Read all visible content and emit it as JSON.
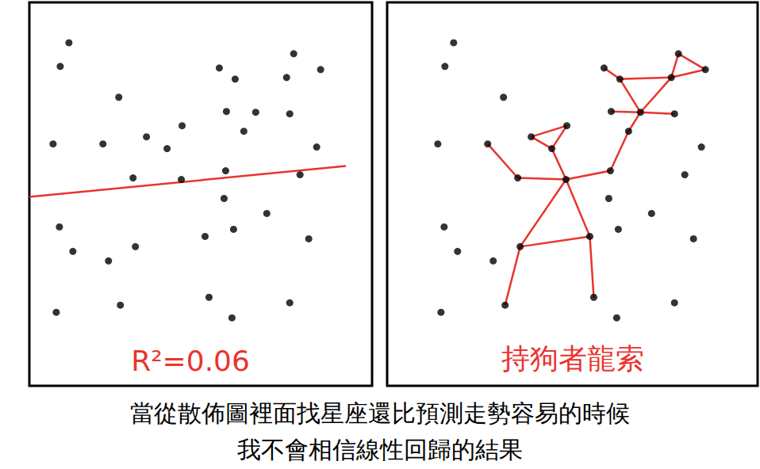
{
  "chart_data": [
    {
      "type": "scatter",
      "x": [
        50,
        39,
        113,
        240,
        260,
        334,
        325,
        368,
        30,
        93,
        148,
        174,
        193,
        249,
        271,
        286,
        329,
        363,
        131,
        192,
        248,
        342,
        246,
        300,
        38,
        55,
        100,
        134,
        222,
        258,
        353,
        34,
        115,
        227,
        256,
        329
      ],
      "y": [
        434,
        404,
        365,
        402,
        388,
        420,
        390,
        400,
        306,
        306,
        315,
        300,
        329,
        347,
        322,
        346,
        344,
        302,
        263,
        261,
        272,
        267,
        237,
        218,
        201,
        170,
        158,
        176,
        189,
        198,
        186,
        93,
        102,
        112,
        86,
        105
      ],
      "color": "#000000",
      "fit": {
        "x": [
          0,
          400
        ],
        "y": [
          239,
          278
        ],
        "color": "#e8342f"
      },
      "annotation": "R²=0.06",
      "annotation_color": "#e8342f",
      "xlim": [
        0,
        433
      ],
      "ylim": [
        0,
        485
      ],
      "tick_labels": false,
      "grid": false
    },
    {
      "type": "scatter",
      "x": [
        50,
        39,
        113,
        240,
        260,
        334,
        325,
        368,
        30,
        93,
        148,
        174,
        193,
        249,
        271,
        286,
        329,
        363,
        131,
        192,
        248,
        342,
        246,
        300,
        38,
        55,
        100,
        134,
        222,
        258,
        353,
        34,
        115,
        227,
        256,
        329
      ],
      "y": [
        434,
        404,
        365,
        402,
        388,
        420,
        390,
        400,
        306,
        306,
        315,
        300,
        329,
        347,
        322,
        346,
        344,
        302,
        263,
        261,
        272,
        267,
        237,
        218,
        201,
        170,
        158,
        176,
        189,
        198,
        186,
        93,
        102,
        112,
        86,
        105
      ],
      "color": "#000000",
      "edges": [
        [
          5,
          7
        ],
        [
          7,
          6
        ],
        [
          6,
          5
        ],
        [
          3,
          4
        ],
        [
          4,
          6
        ],
        [
          4,
          15
        ],
        [
          6,
          15
        ],
        [
          13,
          15
        ],
        [
          15,
          16
        ],
        [
          15,
          14
        ],
        [
          14,
          20
        ],
        [
          20,
          19
        ],
        [
          19,
          18
        ],
        [
          18,
          9
        ],
        [
          10,
          11
        ],
        [
          11,
          12
        ],
        [
          12,
          10
        ],
        [
          11,
          19
        ],
        [
          19,
          27
        ],
        [
          19,
          28
        ],
        [
          27,
          28
        ],
        [
          27,
          32
        ],
        [
          28,
          33
        ]
      ],
      "edge_color": "#e8342f",
      "annotation": "持狗者龍索",
      "annotation_color": "#e8342f",
      "xlim": [
        -34,
        434
      ],
      "ylim": [
        0,
        485
      ],
      "tick_labels": false,
      "grid": false
    }
  ],
  "caption": [
    "當從散佈圖裡面找星座還比預測走勢容易的時候",
    "我不會相信線性回歸的結果"
  ],
  "caption_color": "#000000"
}
